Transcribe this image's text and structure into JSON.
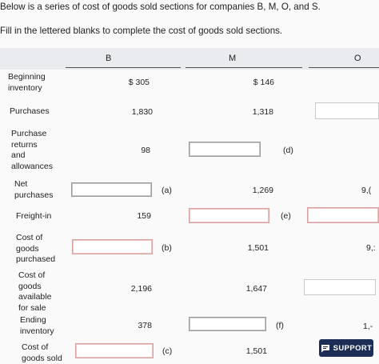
{
  "intro": {
    "line1": "Below is a series of cost of goods sold sections for companies B, M, O, and S.",
    "line2": "Fill in the lettered blanks to complete the cost of goods sold sections."
  },
  "columns": [
    "B",
    "M",
    "O"
  ],
  "rows": {
    "beginning_inventory": {
      "label_1": "Beginning",
      "label_2": "inventory",
      "b": "$ 305",
      "m": "$ 146"
    },
    "purchases": {
      "label": "Purchases",
      "b": "1,830",
      "m": "1,318"
    },
    "purchase_returns": {
      "label_1": "Purchase",
      "label_2": "returns",
      "label_3": "and",
      "label_4": "allowances",
      "b": "98",
      "m_blank": "(d)"
    },
    "net_purchases": {
      "label_1": "Net",
      "label_2": "purchases",
      "b_blank": "(a)",
      "m": "1,269",
      "o_partial": "9,("
    },
    "freight_in": {
      "label": "Freight-in",
      "b": "159",
      "m_blank": "(e)"
    },
    "cost_purchased": {
      "label_1": "Cost of",
      "label_2": "goods",
      "label_3": "purchased",
      "b_blank": "(b)",
      "m": "1,501",
      "o_partial": "9,:"
    },
    "cost_available": {
      "label_1": "Cost of",
      "label_2": "goods",
      "label_3": "available",
      "label_4": "for sale",
      "b": "2,196",
      "m": "1,647"
    },
    "ending_inventory": {
      "label_1": "Ending",
      "label_2": "inventory",
      "b": "378",
      "m_blank": "(f)",
      "o_partial": "1,-"
    },
    "cost_sold": {
      "label_1": "Cost of",
      "label_2": "goods sold",
      "b_blank": "(c)",
      "m": "1,501"
    }
  },
  "support_button": {
    "label": "SUPPORT",
    "icon": "chat-icon",
    "color": "#1c2e55"
  }
}
